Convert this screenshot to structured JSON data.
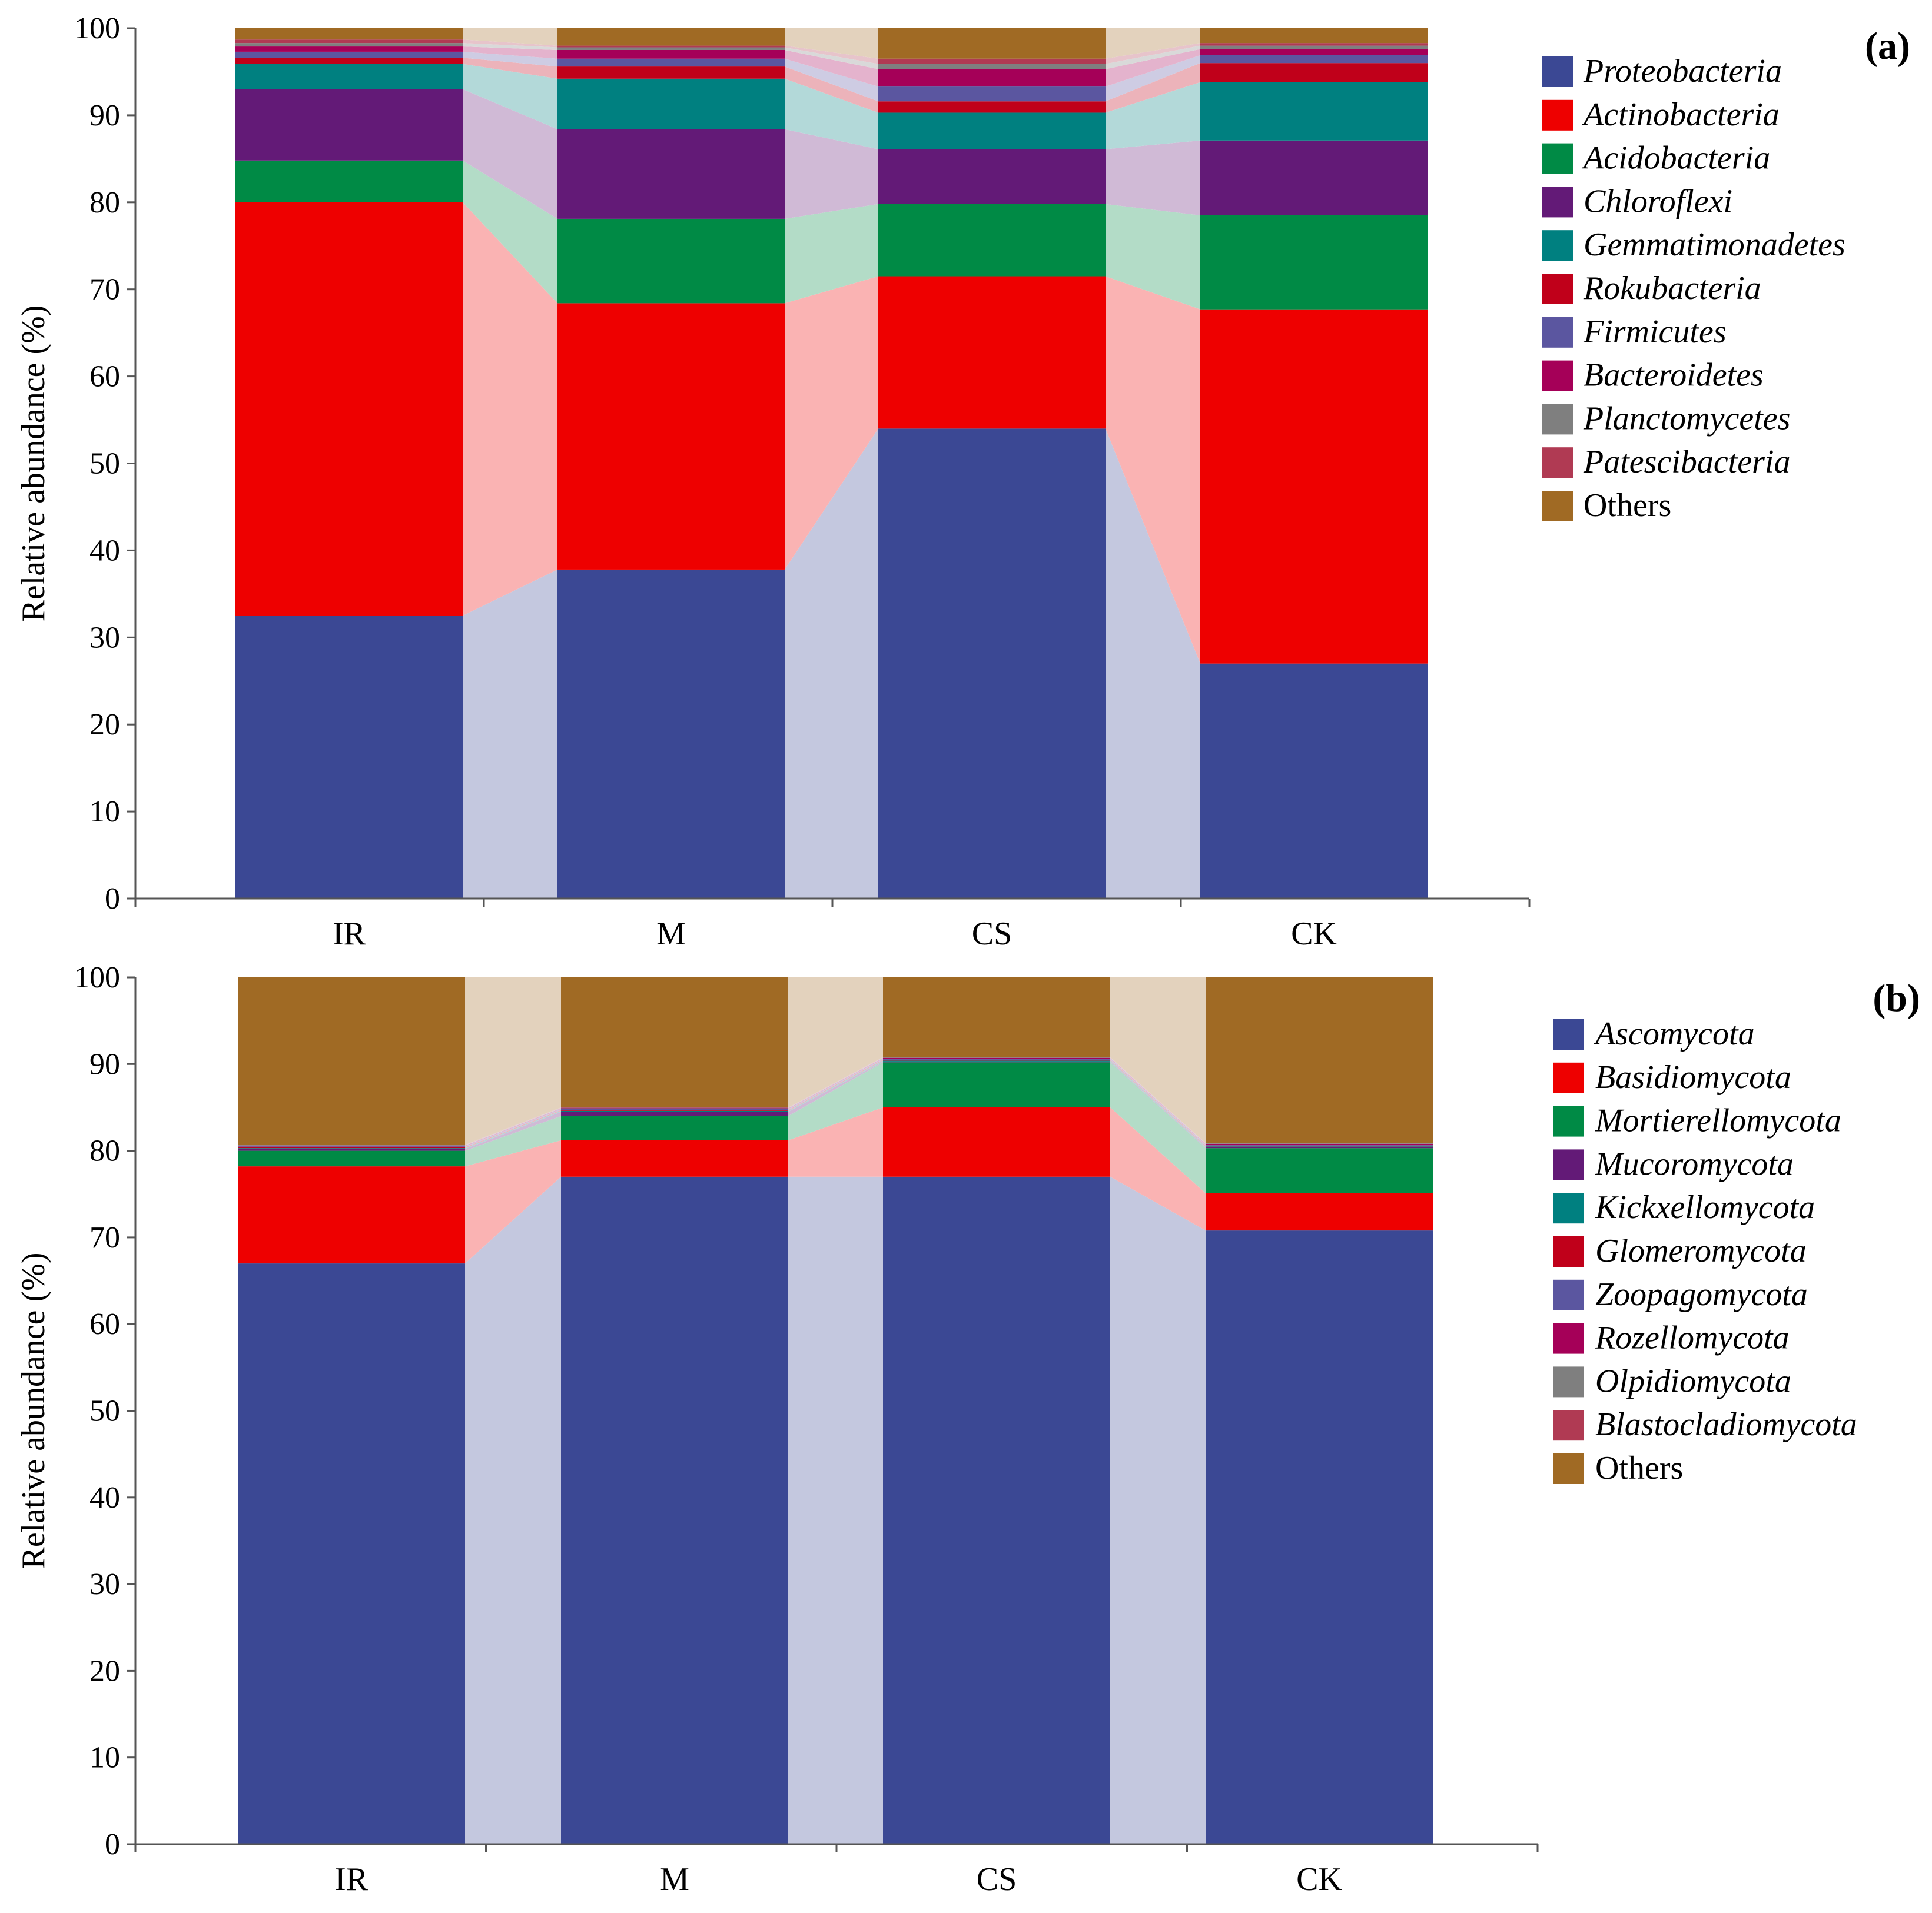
{
  "chart_data": [
    {
      "type": "bar",
      "subtype": "stacked-100-with-connectors",
      "panel_label": "(a)",
      "ylabel": "Relative abundance (%)",
      "xlabel": "",
      "ylim": [
        0,
        100
      ],
      "yticks": [
        0,
        10,
        20,
        30,
        40,
        50,
        60,
        70,
        80,
        90,
        100
      ],
      "categories": [
        "IR",
        "M",
        "CS",
        "CK"
      ],
      "legend_position": "right",
      "series": [
        {
          "name": "Proteobacteria",
          "italic": true,
          "color": "#3B4894",
          "values": [
            32.5,
            37.8,
            54.0,
            27.0
          ]
        },
        {
          "name": "Actinobacteria",
          "italic": true,
          "color": "#EE0000",
          "values": [
            47.5,
            30.6,
            17.5,
            40.7
          ]
        },
        {
          "name": "Acidobacteria",
          "italic": true,
          "color": "#008A45",
          "values": [
            4.8,
            9.7,
            8.3,
            10.8
          ]
        },
        {
          "name": "Chloroflexi",
          "italic": true,
          "color": "#631A77",
          "values": [
            8.2,
            10.3,
            6.3,
            8.6
          ]
        },
        {
          "name": "Gemmatimonadetes",
          "italic": true,
          "color": "#008080",
          "values": [
            2.9,
            5.8,
            4.2,
            6.7
          ]
        },
        {
          "name": "Rokubacteria",
          "italic": true,
          "color": "#C0001A",
          "values": [
            0.7,
            1.4,
            1.3,
            2.2
          ]
        },
        {
          "name": "Firmicutes",
          "italic": true,
          "color": "#5B56A0",
          "values": [
            0.7,
            0.9,
            1.7,
            0.9
          ]
        },
        {
          "name": "Bacteroidetes",
          "italic": true,
          "color": "#A50058",
          "values": [
            0.6,
            1.0,
            2.0,
            0.7
          ]
        },
        {
          "name": "Planctomycetes",
          "italic": true,
          "color": "#7F7F7F",
          "values": [
            0.4,
            0.3,
            0.6,
            0.4
          ]
        },
        {
          "name": "Patescibacteria",
          "italic": true,
          "color": "#B03A53",
          "values": [
            0.4,
            0.2,
            0.6,
            0.3
          ]
        },
        {
          "name": "Others",
          "italic": false,
          "color": "#A06A24",
          "values": [
            1.3,
            2.0,
            3.5,
            1.7
          ]
        }
      ]
    },
    {
      "type": "bar",
      "subtype": "stacked-100-with-connectors",
      "panel_label": "(b)",
      "ylabel": "Relative abundance (%)",
      "xlabel": "",
      "ylim": [
        0,
        100
      ],
      "yticks": [
        0,
        10,
        20,
        30,
        40,
        50,
        60,
        70,
        80,
        90,
        100
      ],
      "categories": [
        "IR",
        "M",
        "CS",
        "CK"
      ],
      "legend_position": "right",
      "series": [
        {
          "name": "Ascomycota",
          "italic": true,
          "color": "#3B4894",
          "values": [
            67.0,
            77.0,
            77.0,
            70.8
          ]
        },
        {
          "name": "Basidiomycota",
          "italic": true,
          "color": "#EE0000",
          "values": [
            11.2,
            4.2,
            8.0,
            4.3
          ]
        },
        {
          "name": "Mortierellomycota",
          "italic": true,
          "color": "#008A45",
          "values": [
            1.8,
            2.8,
            5.2,
            5.2
          ]
        },
        {
          "name": "Mucoromycota",
          "italic": true,
          "color": "#631A77",
          "values": [
            0.2,
            0.5,
            0.1,
            0.1
          ]
        },
        {
          "name": "Kickxellomycota",
          "italic": true,
          "color": "#008080",
          "values": [
            0.1,
            0.1,
            0.1,
            0.1
          ]
        },
        {
          "name": "Glomeromycota",
          "italic": true,
          "color": "#C0001A",
          "values": [
            0.1,
            0.1,
            0.1,
            0.1
          ]
        },
        {
          "name": "Zoopagomycota",
          "italic": true,
          "color": "#5B56A0",
          "values": [
            0.1,
            0.1,
            0.1,
            0.1
          ]
        },
        {
          "name": "Rozellomycota",
          "italic": true,
          "color": "#A50058",
          "values": [
            0.1,
            0.1,
            0.1,
            0.1
          ]
        },
        {
          "name": "Olpidiomycota",
          "italic": true,
          "color": "#7F7F7F",
          "values": [
            0.05,
            0.05,
            0.05,
            0.05
          ]
        },
        {
          "name": "Blastocladiomycota",
          "italic": true,
          "color": "#B03A53",
          "values": [
            0.05,
            0.05,
            0.05,
            0.05
          ]
        },
        {
          "name": "Others",
          "italic": false,
          "color": "#A06A24",
          "values": [
            19.3,
            15.0,
            9.2,
            19.1
          ]
        }
      ]
    }
  ]
}
